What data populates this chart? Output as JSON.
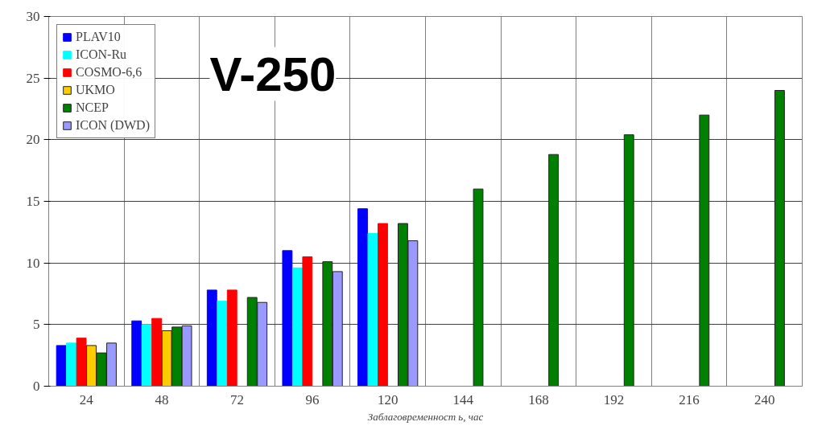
{
  "chart_data": {
    "type": "bar",
    "title": "V-250",
    "xlabel": "Заблаговременност ь, час",
    "categories": [
      "24",
      "48",
      "72",
      "96",
      "120",
      "144",
      "168",
      "192",
      "216",
      "240"
    ],
    "series": [
      {
        "name": "PLAV10",
        "color": "#0000ff",
        "values": [
          3.3,
          5.3,
          7.8,
          11.0,
          14.4,
          null,
          null,
          null,
          null,
          null
        ]
      },
      {
        "name": "ICON-Ru",
        "color": "#00ffff",
        "values": [
          3.5,
          5.0,
          6.9,
          9.6,
          12.4,
          null,
          null,
          null,
          null,
          null
        ]
      },
      {
        "name": "COSMO-6,6",
        "color": "#ff0000",
        "values": [
          3.9,
          5.5,
          7.8,
          10.5,
          13.2,
          null,
          null,
          null,
          null,
          null
        ]
      },
      {
        "name": "UKMO",
        "color": "#ffcc00",
        "values": [
          3.3,
          4.5,
          null,
          null,
          null,
          null,
          null,
          null,
          null,
          null
        ]
      },
      {
        "name": "NCEP",
        "color": "#008000",
        "values": [
          2.7,
          4.8,
          7.2,
          10.1,
          13.2,
          16.0,
          18.8,
          20.4,
          22.0,
          24.0
        ]
      },
      {
        "name": "ICON (DWD)",
        "color": "#9999ff",
        "values": [
          3.5,
          4.9,
          6.8,
          9.3,
          11.8,
          null,
          null,
          null,
          null,
          null
        ]
      }
    ],
    "ylim": [
      0,
      30
    ],
    "yticks": [
      0,
      5,
      10,
      15,
      20,
      25,
      30
    ],
    "grid": true,
    "legend": "top left"
  }
}
